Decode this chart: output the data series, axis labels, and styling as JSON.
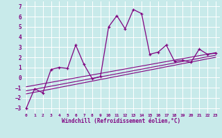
{
  "xlabel": "Windchill (Refroidissement éolien,°C)",
  "bg_color": "#c8eaea",
  "grid_color": "#ffffff",
  "line_color": "#800080",
  "xlim": [
    -0.5,
    23.5
  ],
  "ylim": [
    -3.5,
    7.5
  ],
  "xticks": [
    0,
    1,
    2,
    3,
    4,
    5,
    6,
    7,
    8,
    9,
    10,
    11,
    12,
    13,
    14,
    15,
    16,
    17,
    18,
    19,
    20,
    21,
    22,
    23
  ],
  "yticks": [
    -3,
    -2,
    -1,
    0,
    1,
    2,
    3,
    4,
    5,
    6,
    7
  ],
  "main_series_x": [
    0,
    1,
    2,
    3,
    4,
    5,
    6,
    7,
    8,
    9,
    10,
    11,
    12,
    13,
    14,
    15,
    16,
    17,
    18,
    19,
    20,
    21,
    22,
    23
  ],
  "main_series_y": [
    -3.0,
    -1.1,
    -1.5,
    0.8,
    1.0,
    0.9,
    3.2,
    1.3,
    -0.1,
    0.1,
    5.0,
    6.1,
    4.8,
    6.7,
    6.3,
    2.3,
    2.5,
    3.2,
    1.6,
    1.7,
    1.5,
    2.8,
    2.3,
    2.4
  ],
  "line1_x": [
    0,
    23
  ],
  "line1_y": [
    -1.6,
    2.0
  ],
  "line2_x": [
    0,
    23
  ],
  "line2_y": [
    -1.3,
    2.2
  ],
  "line3_x": [
    0,
    23
  ],
  "line3_y": [
    -0.9,
    2.45
  ]
}
